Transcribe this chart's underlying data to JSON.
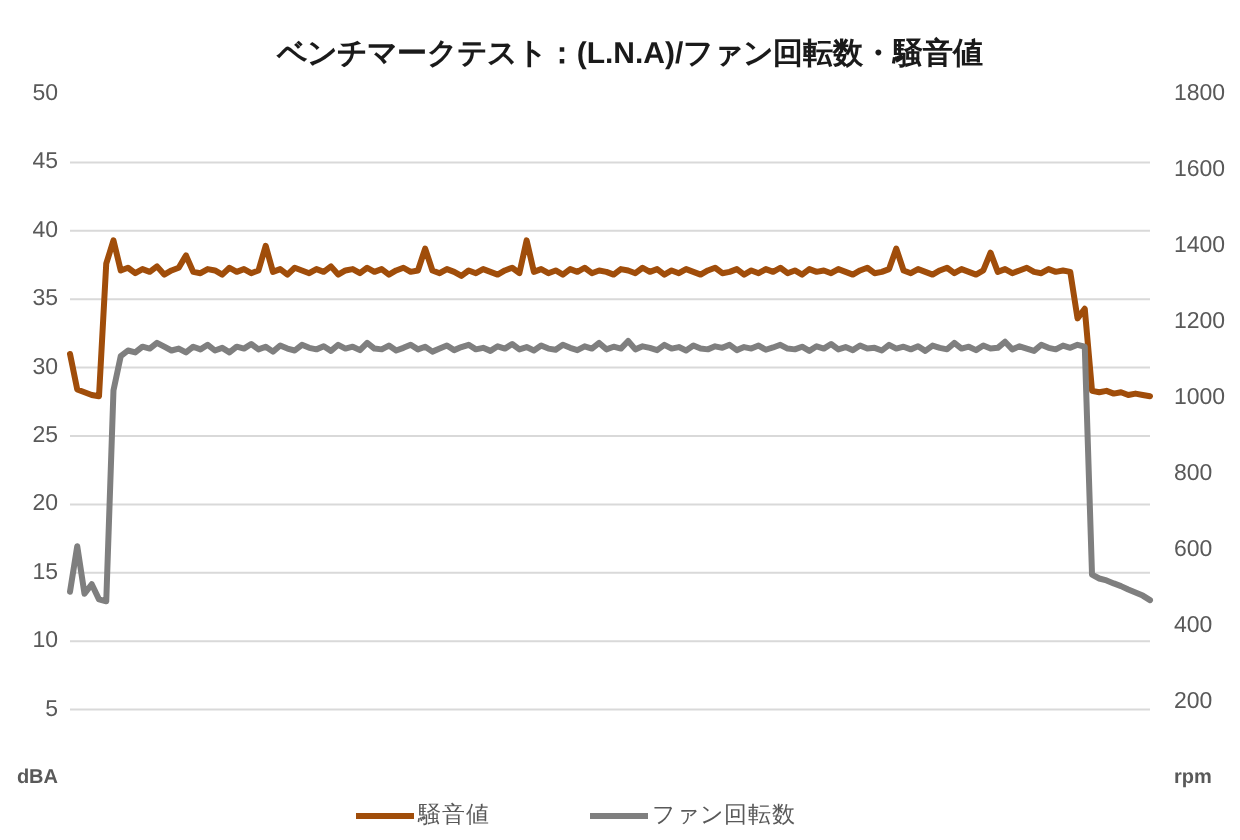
{
  "chart_data": {
    "type": "line",
    "title": "ベンチマークテスト：(L.N.A)/ファン回転数・騒音値",
    "categories": [
      null,
      null,
      null,
      null,
      null,
      null,
      null,
      null,
      null,
      null,
      null,
      null,
      null,
      null,
      null,
      null,
      null,
      null,
      null,
      null,
      null,
      null,
      null,
      null,
      null,
      null,
      null,
      null,
      null,
      null,
      null,
      null,
      null,
      null,
      null,
      null,
      null,
      null,
      null,
      null,
      null,
      null,
      null,
      null,
      null,
      null,
      null,
      null,
      null,
      null,
      null,
      null,
      null,
      null,
      null,
      null,
      null,
      null,
      null,
      null,
      null,
      null,
      null,
      null,
      null,
      null,
      null,
      null,
      null,
      null,
      null,
      null,
      null,
      null,
      null,
      null,
      null,
      null,
      null,
      null,
      null,
      null,
      null,
      null,
      null,
      null,
      null,
      null,
      null,
      null,
      null,
      null,
      null,
      null,
      null,
      null,
      null,
      null,
      null,
      null,
      null,
      null,
      null,
      null,
      null,
      null,
      null,
      null,
      null,
      null,
      null,
      null,
      null,
      null,
      null,
      null,
      null,
      null,
      null,
      null,
      null,
      null,
      null,
      null,
      null,
      null,
      null,
      null,
      null,
      null,
      null,
      null,
      null,
      null,
      null,
      null,
      null,
      null,
      null,
      null,
      null,
      null,
      null,
      null,
      null,
      null,
      null,
      null,
      null,
      null
    ],
    "series": [
      {
        "name": "騒音値",
        "color": "#a04d0a",
        "values": [
          31.0,
          28.4,
          28.2,
          28.0,
          27.9,
          37.6,
          39.3,
          37.1,
          37.3,
          36.9,
          37.2,
          37.0,
          37.4,
          36.8,
          37.1,
          37.3,
          38.2,
          37.0,
          36.9,
          37.2,
          37.1,
          36.8,
          37.3,
          37.0,
          37.2,
          36.9,
          37.1,
          38.9,
          37.0,
          37.2,
          36.8,
          37.3,
          37.1,
          36.9,
          37.2,
          37.0,
          37.4,
          36.8,
          37.1,
          37.2,
          36.9,
          37.3,
          37.0,
          37.2,
          36.8,
          37.1,
          37.3,
          37.0,
          37.1,
          38.7,
          37.1,
          36.9,
          37.2,
          37.0,
          36.7,
          37.1,
          36.9,
          37.2,
          37.0,
          36.8,
          37.1,
          37.3,
          36.9,
          39.3,
          37.0,
          37.2,
          36.9,
          37.1,
          36.8,
          37.2,
          37.0,
          37.3,
          36.9,
          37.1,
          37.0,
          36.8,
          37.2,
          37.1,
          36.9,
          37.3,
          37.0,
          37.2,
          36.8,
          37.1,
          36.9,
          37.2,
          37.0,
          36.8,
          37.1,
          37.3,
          36.9,
          37.0,
          37.2,
          36.8,
          37.1,
          36.9,
          37.2,
          37.0,
          37.3,
          36.9,
          37.1,
          36.8,
          37.2,
          37.0,
          37.1,
          36.9,
          37.2,
          37.0,
          36.8,
          37.1,
          37.3,
          36.9,
          37.0,
          37.2,
          38.7,
          37.1,
          36.9,
          37.2,
          37.0,
          36.8,
          37.1,
          37.3,
          36.9,
          37.2,
          37.0,
          36.8,
          37.1,
          38.4,
          37.0,
          37.2,
          36.9,
          37.1,
          37.3,
          37.0,
          36.9,
          37.2,
          37.0,
          37.1,
          37.0,
          33.6,
          34.3,
          28.3,
          28.2,
          28.3,
          28.1,
          28.2,
          28.0,
          28.1,
          28.0,
          27.9
        ]
      },
      {
        "name": "ファン回転数",
        "color": "#7f7f7f",
        "axis": "y2",
        "values": [
          490,
          610,
          485,
          510,
          470,
          465,
          1020,
          1110,
          1125,
          1120,
          1135,
          1130,
          1145,
          1135,
          1125,
          1130,
          1120,
          1135,
          1128,
          1140,
          1125,
          1132,
          1120,
          1135,
          1130,
          1142,
          1128,
          1135,
          1122,
          1138,
          1130,
          1125,
          1140,
          1132,
          1128,
          1136,
          1124,
          1140,
          1130,
          1135,
          1126,
          1145,
          1130,
          1128,
          1138,
          1125,
          1132,
          1140,
          1128,
          1135,
          1122,
          1130,
          1138,
          1126,
          1134,
          1140,
          1128,
          1132,
          1124,
          1136,
          1130,
          1142,
          1128,
          1134,
          1125,
          1138,
          1130,
          1127,
          1140,
          1132,
          1126,
          1136,
          1130,
          1145,
          1128,
          1135,
          1130,
          1150,
          1128,
          1136,
          1132,
          1126,
          1140,
          1130,
          1134,
          1125,
          1138,
          1130,
          1128,
          1136,
          1132,
          1140,
          1126,
          1134,
          1130,
          1138,
          1127,
          1133,
          1140,
          1130,
          1128,
          1135,
          1124,
          1136,
          1130,
          1142,
          1128,
          1134,
          1126,
          1138,
          1130,
          1132,
          1125,
          1140,
          1130,
          1135,
          1128,
          1136,
          1124,
          1138,
          1132,
          1128,
          1145,
          1130,
          1135,
          1126,
          1138,
          1130,
          1132,
          1148,
          1128,
          1136,
          1130,
          1124,
          1140,
          1132,
          1128,
          1138,
          1132,
          1140,
          1135,
          535,
          525,
          520,
          512,
          505,
          496,
          488,
          480,
          468
        ]
      }
    ],
    "ylim": [
      0,
      50
    ],
    "yticks": [
      {
        "value": 0,
        "label": "dBA"
      },
      5,
      10,
      15,
      20,
      25,
      30,
      35,
      40,
      45,
      50
    ],
    "y2lim": [
      0,
      1800
    ],
    "y2ticks": [
      {
        "value": 0,
        "label": "rpm"
      },
      200,
      400,
      600,
      800,
      1000,
      1200,
      1400,
      1600,
      1800
    ],
    "grid": "y",
    "legend": "bottom",
    "line_style": "solid"
  }
}
